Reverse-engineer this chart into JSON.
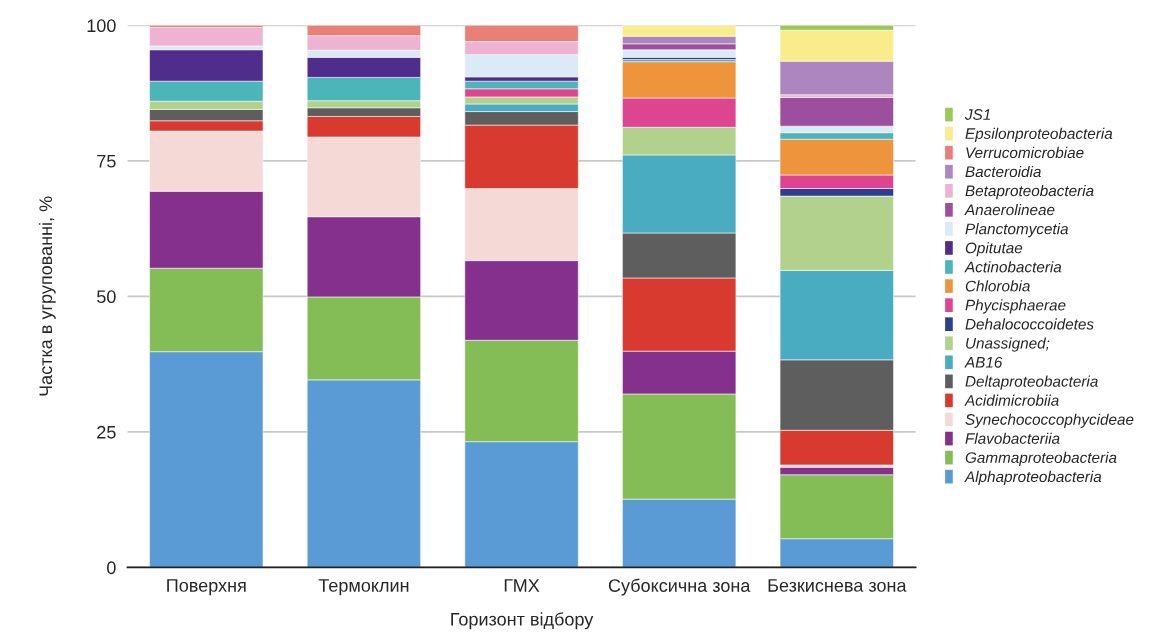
{
  "chart_data": {
    "type": "bar",
    "stacked": true,
    "xlabel": "Горизонт відбору",
    "ylabel": "Частка в угрупованні, %",
    "categories": [
      "Поверхня",
      "Термоклин",
      "ГМХ",
      "Субоксична зона",
      "Безкиснева зона"
    ],
    "ylim": [
      0,
      100
    ],
    "yticks": [
      0,
      25,
      50,
      75,
      100
    ],
    "grid": "y",
    "legend": "right",
    "series": [
      {
        "name": "Alphaproteobacteria",
        "color": "#5b9bd5",
        "values": [
          39.8,
          34.6,
          23.2,
          12.6,
          5.3
        ]
      },
      {
        "name": "Gammaproteobacteria",
        "color": "#84bd55",
        "values": [
          15.4,
          15.3,
          18.7,
          19.4,
          11.8
        ]
      },
      {
        "name": "Flavobacteriia",
        "color": "#85308d",
        "values": [
          14.2,
          14.8,
          14.7,
          7.9,
          1.4
        ]
      },
      {
        "name": "Synechococcophycideae",
        "color": "#f5d9d7",
        "values": [
          11.1,
          14.7,
          13.3,
          0,
          0.4
        ]
      },
      {
        "name": "Acidimicrobiia",
        "color": "#d93a2f",
        "values": [
          1.9,
          3.8,
          11.7,
          13.5,
          6.4
        ]
      },
      {
        "name": "Deltaproteobacteria",
        "color": "#5e5e5e",
        "values": [
          2.1,
          1.6,
          2.5,
          8.3,
          13.0
        ]
      },
      {
        "name": "AB16",
        "color": "#4aacc0",
        "values": [
          0,
          0,
          1.4,
          14.4,
          16.5
        ]
      },
      {
        "name": "Unassigned;",
        "color": "#b2d18c",
        "values": [
          1.5,
          1.3,
          1.3,
          5.1,
          13.7
        ]
      },
      {
        "name": "Dehalococcoidetes",
        "color": "#2d3d8f",
        "values": [
          0,
          0,
          0,
          0,
          1.4
        ]
      },
      {
        "name": "Phycisphaerae",
        "color": "#de4590",
        "values": [
          0,
          0,
          1.5,
          5.4,
          2.5
        ]
      },
      {
        "name": "Chlorobia",
        "color": "#ed943c",
        "values": [
          0,
          0,
          0,
          6.7,
          6.6
        ]
      },
      {
        "name": "Actinobacteria",
        "color": "#4bb5b9",
        "values": [
          3.7,
          4.3,
          1.4,
          0.4,
          1.2
        ]
      },
      {
        "name": "Opitutae",
        "color": "#4f2d8c",
        "values": [
          5.8,
          3.7,
          0.8,
          0.4,
          0
        ]
      },
      {
        "name": "Planctomycetia",
        "color": "#dbeaf7",
        "values": [
          0.7,
          1.3,
          4.1,
          1.4,
          1.2
        ]
      },
      {
        "name": "Anaerolineae",
        "color": "#9c4f9c",
        "values": [
          0,
          0,
          0,
          1.1,
          5.3
        ]
      },
      {
        "name": "Betaproteobacteria",
        "color": "#eeb3d2",
        "values": [
          3.4,
          2.7,
          2.4,
          0,
          0.5
        ]
      },
      {
        "name": "Bacteroidia",
        "color": "#ad86bf",
        "values": [
          0,
          0,
          0,
          1.4,
          6.2
        ]
      },
      {
        "name": "Verrucomicrobiae",
        "color": "#e98077",
        "values": [
          0.4,
          1.9,
          3.0,
          0,
          0
        ]
      },
      {
        "name": "Epsilonproteobacteria",
        "color": "#f9ec8b",
        "values": [
          0,
          0,
          0,
          2.0,
          5.7
        ]
      },
      {
        "name": "JS1",
        "color": "#9bc857",
        "values": [
          0,
          0,
          0,
          0,
          0.9
        ]
      }
    ]
  }
}
